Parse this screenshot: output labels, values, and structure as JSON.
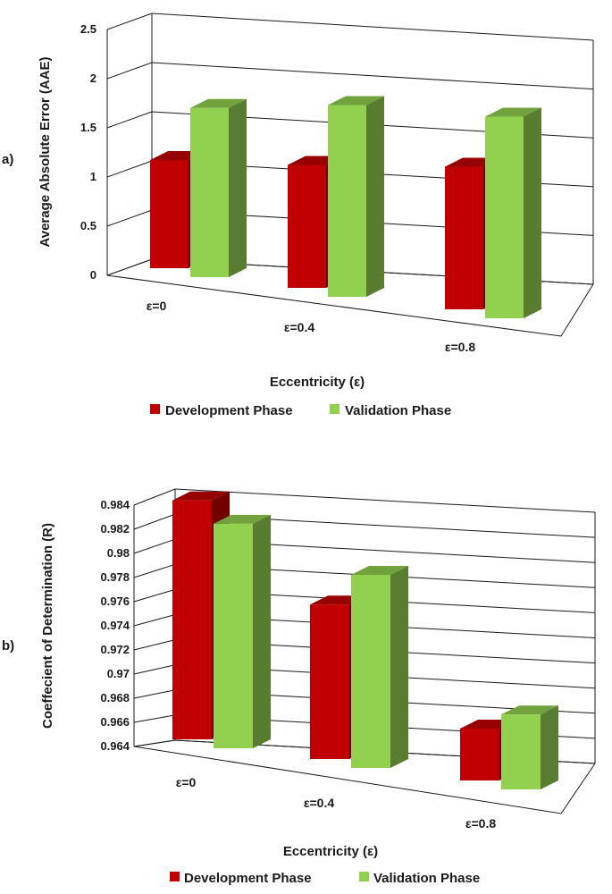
{
  "chart_data": [
    {
      "panel_label": "a)",
      "type": "bar",
      "style": "3d-clustered-column",
      "categories": [
        "ε=0",
        "ε=0.4",
        "ε=0.8"
      ],
      "series": [
        {
          "name": "Development Phase",
          "color": "#c00000",
          "values": [
            1.1,
            1.25,
            1.45
          ]
        },
        {
          "name": "Validation Phase",
          "color": "#92d050",
          "values": [
            1.72,
            1.95,
            2.05
          ]
        }
      ],
      "ylabel": "Average Absolute Error (AAE)",
      "xlabel": "Eccentricity (ε)",
      "ylim": [
        0,
        2.5
      ],
      "yticks": [
        "0",
        "0.5",
        "1",
        "1.5",
        "2",
        "2.5"
      ],
      "legend": "bottom"
    },
    {
      "panel_label": "b)",
      "type": "bar",
      "style": "3d-clustered-column",
      "categories": [
        "ε=0",
        "ε=0.4",
        "ε=0.8"
      ],
      "series": [
        {
          "name": "Development Phase",
          "color": "#c00000",
          "values": [
            0.9838,
            0.9768,
            0.9683
          ]
        },
        {
          "name": "Validation Phase",
          "color": "#92d050",
          "values": [
            0.9826,
            0.98,
            0.9702
          ]
        }
      ],
      "ylabel": "Coeffecient of Determination (R)",
      "xlabel": "Eccentricity (ε)",
      "ylim": [
        0.964,
        0.984
      ],
      "yticks": [
        "0.964",
        "0.966",
        "0.968",
        "0.97",
        "0.972",
        "0.974",
        "0.976",
        "0.978",
        "0.98",
        "0.982",
        "0.984"
      ],
      "legend": "bottom"
    }
  ]
}
